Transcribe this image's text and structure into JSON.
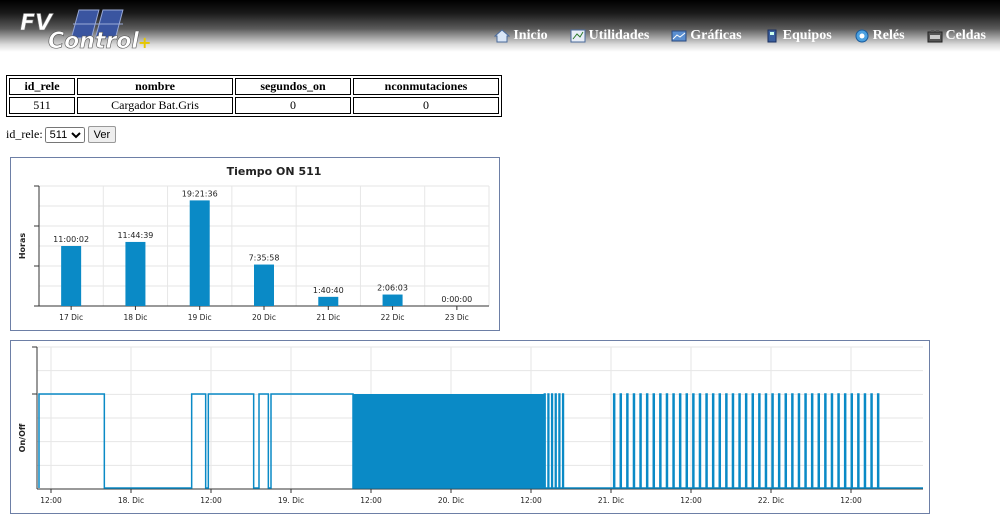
{
  "header": {
    "logo_text": "FV Control+",
    "nav": [
      {
        "label": "Inicio",
        "icon": "home-icon"
      },
      {
        "label": "Utilidades",
        "icon": "utilities-icon"
      },
      {
        "label": "Gráficas",
        "icon": "charts-icon"
      },
      {
        "label": "Equipos",
        "icon": "devices-icon"
      },
      {
        "label": "Relés",
        "icon": "relay-icon"
      },
      {
        "label": "Celdas",
        "icon": "cells-icon"
      }
    ]
  },
  "table": {
    "headers": [
      "id_rele",
      "nombre",
      "segundos_on",
      "nconmutaciones"
    ],
    "rows": [
      [
        "511",
        "Cargador Bat.Gris",
        "0",
        "0"
      ]
    ]
  },
  "form": {
    "label": "id_rele:",
    "selected": "511",
    "button": "Ver"
  },
  "colors": {
    "bar": "#0a8ac6",
    "line": "#0a8ac6",
    "frame": "#6d7fa6",
    "header_bg": "#000000"
  },
  "chart_data": [
    {
      "type": "bar",
      "title": "Tiempo ON 511",
      "ylabel": "Horas",
      "categories": [
        "17 Dic",
        "18 Dic",
        "19 Dic",
        "20 Dic",
        "21 Dic",
        "22 Dic",
        "23 Dic"
      ],
      "values": [
        11.0006,
        11.7442,
        19.36,
        7.5994,
        1.6778,
        2.1008,
        0
      ],
      "data_labels": [
        "11:00:02",
        "11:44:39",
        "19:21:36",
        "7:35:58",
        "1:40:40",
        "2:06:03",
        "0:00:00"
      ],
      "ylim": [
        0,
        22
      ],
      "grid": true
    },
    {
      "type": "line",
      "title": "",
      "ylabel": "On/Off",
      "x_ticks": [
        "12:00",
        "18. Dic",
        "12:00",
        "19. Dic",
        "12:00",
        "20. Dic",
        "12:00",
        "21. Dic",
        "12:00",
        "22. Dic",
        "12:00"
      ],
      "x_start": "17. Dic 10:00",
      "x_hours_per_tick": 12,
      "on_intervals_hours": [
        [
          -1.2,
          10.0
        ],
        [
          23.1,
          25.2
        ],
        [
          25.6,
          32.4
        ],
        [
          33.2,
          34.6
        ],
        [
          35.0,
          47.3
        ]
      ],
      "dense_block_hours": [
        47.3,
        76.0
      ],
      "sparse_pulses_start_hours": [
        76.0,
        78.9
      ],
      "periodic_pulses": {
        "start": 86.4,
        "end": 126.0,
        "step": 0.99
      },
      "ylim": [
        0,
        1
      ],
      "grid": true
    }
  ]
}
